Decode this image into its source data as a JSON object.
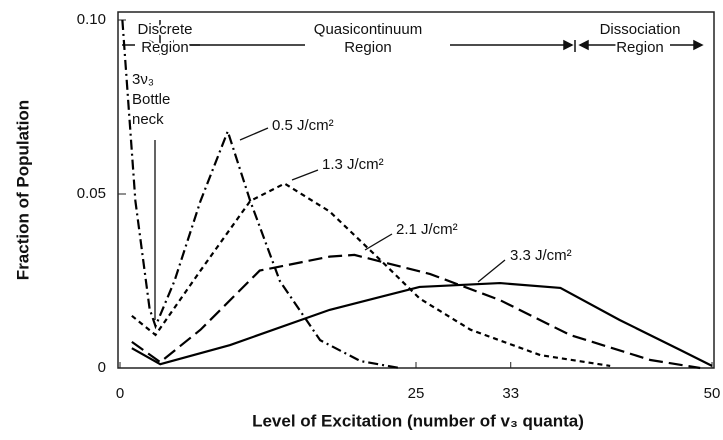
{
  "chart_data": {
    "type": "line",
    "xlabel": "Level of Excitation (number of v₃ quanta)",
    "ylabel": "Fraction of Population",
    "xlim": [
      0,
      50
    ],
    "xticks": [
      0,
      25,
      33,
      50
    ],
    "ylim": [
      0,
      0.1
    ],
    "yticks": [
      0,
      0.05,
      {
        "value": 0.1,
        "label": "0.10"
      }
    ],
    "annotations": [
      "Discrete",
      "Region",
      "Quasicontinuum",
      "Region",
      "Dissociation",
      "Region",
      "3ν₃",
      "Bottle",
      "neck"
    ],
    "series": [
      {
        "name": "0.5 J/cm²",
        "color": "#000000",
        "style": "dashdot",
        "x": [
          0.2,
          1.3,
          2.5,
          3,
          4.6,
          6.8,
          9.1,
          11,
          13.5,
          16.9,
          20.3,
          23.6
        ],
        "values": [
          0.1,
          0.048,
          0.017,
          0.012,
          0.025,
          0.048,
          0.068,
          0.048,
          0.025,
          0.008,
          0.002,
          0
        ]
      },
      {
        "name": "1.3 J/cm²",
        "color": "#000000",
        "style": "dotted",
        "x": [
          1,
          3,
          6.8,
          11,
          13.9,
          17.7,
          22,
          25.3,
          29.6,
          35.5,
          41.4
        ],
        "values": [
          0.015,
          0.0095,
          0.028,
          0.048,
          0.053,
          0.045,
          0.031,
          0.02,
          0.011,
          0.0037,
          0.0006
        ]
      },
      {
        "name": "2.1 J/cm²",
        "color": "#000000",
        "style": "dashed",
        "x": [
          1,
          3.4,
          6.8,
          11.8,
          17.7,
          19.8,
          26.2,
          32.1,
          38,
          44.8,
          49
        ],
        "values": [
          0.0075,
          0.0017,
          0.011,
          0.028,
          0.032,
          0.0325,
          0.027,
          0.0195,
          0.0095,
          0.0023,
          0
        ]
      },
      {
        "name": "3.3 J/cm²",
        "color": "#000000",
        "style": "solid",
        "x": [
          1,
          3.4,
          9.3,
          17.7,
          25.3,
          32.1,
          37.2,
          42.2,
          47.3,
          50
        ],
        "values": [
          0.0057,
          0.0011,
          0.0066,
          0.0167,
          0.0233,
          0.0244,
          0.023,
          0.0138,
          0.0052,
          0.0006
        ]
      }
    ]
  }
}
